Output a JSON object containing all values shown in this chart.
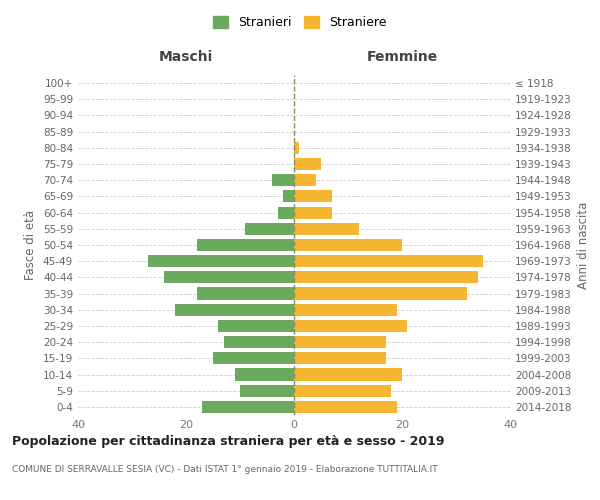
{
  "age_groups": [
    "0-4",
    "5-9",
    "10-14",
    "15-19",
    "20-24",
    "25-29",
    "30-34",
    "35-39",
    "40-44",
    "45-49",
    "50-54",
    "55-59",
    "60-64",
    "65-69",
    "70-74",
    "75-79",
    "80-84",
    "85-89",
    "90-94",
    "95-99",
    "100+"
  ],
  "birth_years": [
    "2014-2018",
    "2009-2013",
    "2004-2008",
    "1999-2003",
    "1994-1998",
    "1989-1993",
    "1984-1988",
    "1979-1983",
    "1974-1978",
    "1969-1973",
    "1964-1968",
    "1959-1963",
    "1954-1958",
    "1949-1953",
    "1944-1948",
    "1939-1943",
    "1934-1938",
    "1929-1933",
    "1924-1928",
    "1919-1923",
    "≤ 1918"
  ],
  "males": [
    17,
    10,
    11,
    15,
    13,
    14,
    22,
    18,
    24,
    27,
    18,
    9,
    3,
    2,
    4,
    0,
    0,
    0,
    0,
    0,
    0
  ],
  "females": [
    19,
    18,
    20,
    17,
    17,
    21,
    19,
    32,
    34,
    35,
    20,
    12,
    7,
    7,
    4,
    5,
    1,
    0,
    0,
    0,
    0
  ],
  "male_color": "#6aaa5e",
  "female_color": "#f5b731",
  "grid_color": "#cccccc",
  "center_line_color": "#888866",
  "title": "Popolazione per cittadinanza straniera per età e sesso - 2019",
  "subtitle": "COMUNE DI SERRAVALLE SESIA (VC) - Dati ISTAT 1° gennaio 2019 - Elaborazione TUTTITALIA.IT",
  "ylabel_left": "Fasce di età",
  "ylabel_right": "Anni di nascita",
  "xlabel_maschi": "Maschi",
  "xlabel_femmine": "Femmine",
  "legend_male": "Stranieri",
  "legend_female": "Straniere",
  "xlim": 40,
  "bg_color": "#ffffff",
  "bar_height": 0.75
}
